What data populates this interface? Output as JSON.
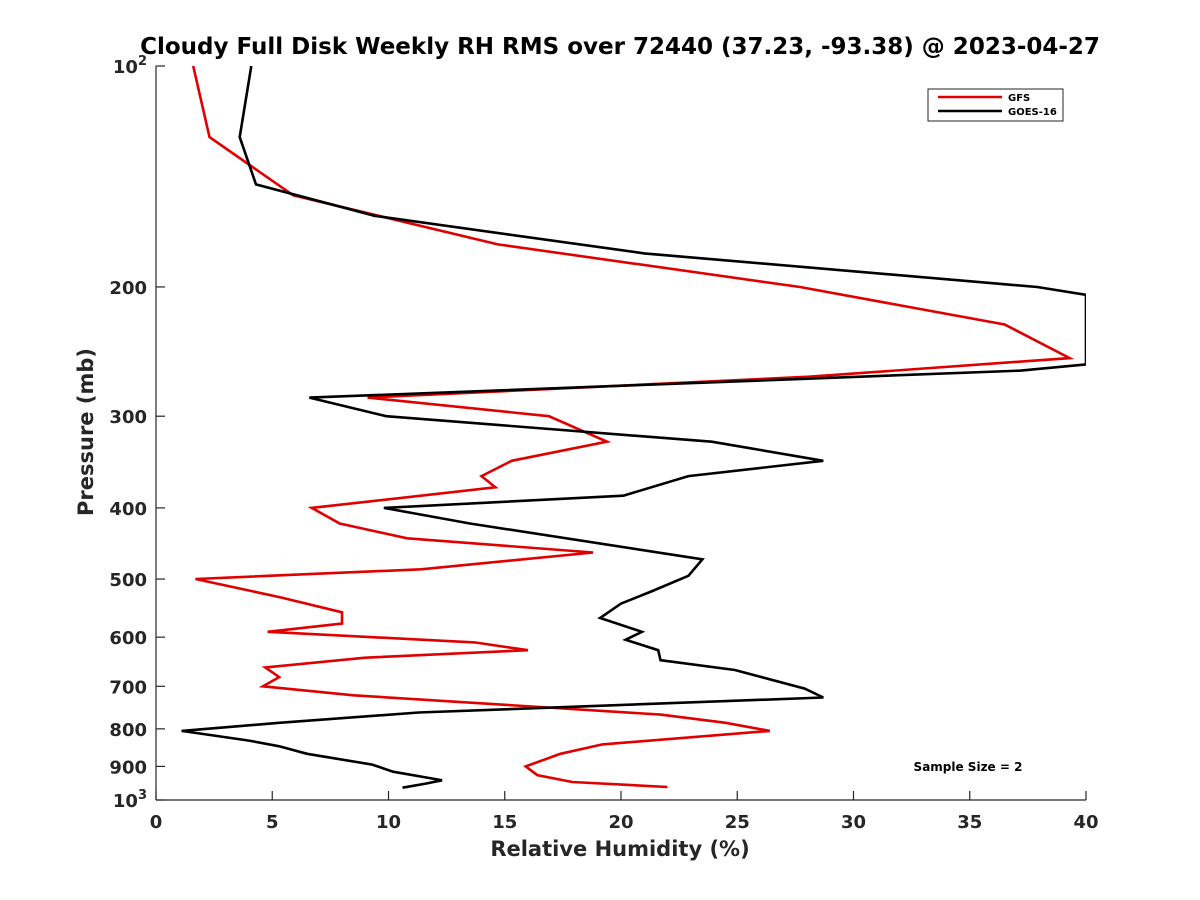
{
  "chart_data": {
    "type": "line",
    "title": "Cloudy Full Disk Weekly RH RMS over 72440 (37.23, -93.38) @ 2023-04-27",
    "xlabel": "Relative Humidity (%)",
    "ylabel": "Pressure (mb)",
    "xlim": [
      0,
      40
    ],
    "ylim": [
      100,
      1000
    ],
    "y_scale": "log",
    "y_reversed": true,
    "x_ticks": [
      "0",
      "5",
      "10",
      "15",
      "20",
      "25",
      "30",
      "35",
      "40"
    ],
    "x_tick_values": [
      0,
      5,
      10,
      15,
      20,
      25,
      30,
      35,
      40
    ],
    "y_ticks": [
      {
        "value": 100,
        "base": "10",
        "exp": "2"
      },
      {
        "value": 200,
        "label": "200"
      },
      {
        "value": 300,
        "label": "300"
      },
      {
        "value": 400,
        "label": "400"
      },
      {
        "value": 500,
        "label": "500"
      },
      {
        "value": 600,
        "label": "600"
      },
      {
        "value": 700,
        "label": "700"
      },
      {
        "value": 800,
        "label": "800"
      },
      {
        "value": 900,
        "label": "900"
      },
      {
        "value": 1000,
        "base": "10",
        "exp": "3"
      }
    ],
    "grid": false,
    "legend_position": "top-right",
    "annotation": "Sample Size = 2",
    "series": [
      {
        "name": "GFS",
        "color": "#e00000",
        "points": [
          [
            1.6,
            100
          ],
          [
            2.3,
            125
          ],
          [
            5.9,
            150
          ],
          [
            14.7,
            175
          ],
          [
            27.7,
            200
          ],
          [
            36.5,
            225
          ],
          [
            39.3,
            250
          ],
          [
            28.1,
            265
          ],
          [
            9.1,
            283
          ],
          [
            16.9,
            300
          ],
          [
            19.4,
            325
          ],
          [
            15.3,
            345
          ],
          [
            14.0,
            362
          ],
          [
            14.6,
            375
          ],
          [
            6.7,
            400
          ],
          [
            7.9,
            420
          ],
          [
            10.8,
            440
          ],
          [
            18.8,
            460
          ],
          [
            11.4,
            485
          ],
          [
            1.7,
            500
          ],
          [
            5.4,
            530
          ],
          [
            8.0,
            555
          ],
          [
            8.0,
            575
          ],
          [
            4.8,
            590
          ],
          [
            13.7,
            610
          ],
          [
            16.0,
            625
          ],
          [
            9.0,
            640
          ],
          [
            4.7,
            660
          ],
          [
            5.3,
            680
          ],
          [
            4.6,
            700
          ],
          [
            8.5,
            720
          ],
          [
            21.7,
            765
          ],
          [
            24.5,
            785
          ],
          [
            26.4,
            805
          ],
          [
            19.2,
            840
          ],
          [
            17.4,
            865
          ],
          [
            15.9,
            900
          ],
          [
            16.4,
            925
          ],
          [
            17.9,
            945
          ],
          [
            22.0,
            960
          ]
        ]
      },
      {
        "name": "GOES-16",
        "color": "#000000",
        "points": [
          [
            4.1,
            100
          ],
          [
            3.6,
            125
          ],
          [
            4.3,
            145
          ],
          [
            9.4,
            160
          ],
          [
            21.0,
            180
          ],
          [
            37.9,
            200
          ],
          [
            40.0,
            205
          ],
          [
            40.0,
            255
          ],
          [
            37.2,
            260
          ],
          [
            6.6,
            283
          ],
          [
            9.9,
            300
          ],
          [
            23.9,
            325
          ],
          [
            28.7,
            345
          ],
          [
            22.9,
            362
          ],
          [
            20.1,
            385
          ],
          [
            9.8,
            400
          ],
          [
            13.5,
            420
          ],
          [
            23.5,
            470
          ],
          [
            22.9,
            495
          ],
          [
            21.3,
            520
          ],
          [
            20.0,
            540
          ],
          [
            19.1,
            565
          ],
          [
            20.9,
            590
          ],
          [
            20.2,
            605
          ],
          [
            21.6,
            625
          ],
          [
            21.7,
            645
          ],
          [
            24.9,
            665
          ],
          [
            27.9,
            705
          ],
          [
            28.7,
            725
          ],
          [
            11.3,
            760
          ],
          [
            5.3,
            785
          ],
          [
            1.1,
            805
          ],
          [
            4.0,
            830
          ],
          [
            5.3,
            845
          ],
          [
            6.5,
            865
          ],
          [
            9.3,
            895
          ],
          [
            10.2,
            915
          ],
          [
            11.9,
            935
          ],
          [
            12.3,
            940
          ],
          [
            11.6,
            950
          ],
          [
            10.6,
            962
          ]
        ]
      }
    ]
  }
}
